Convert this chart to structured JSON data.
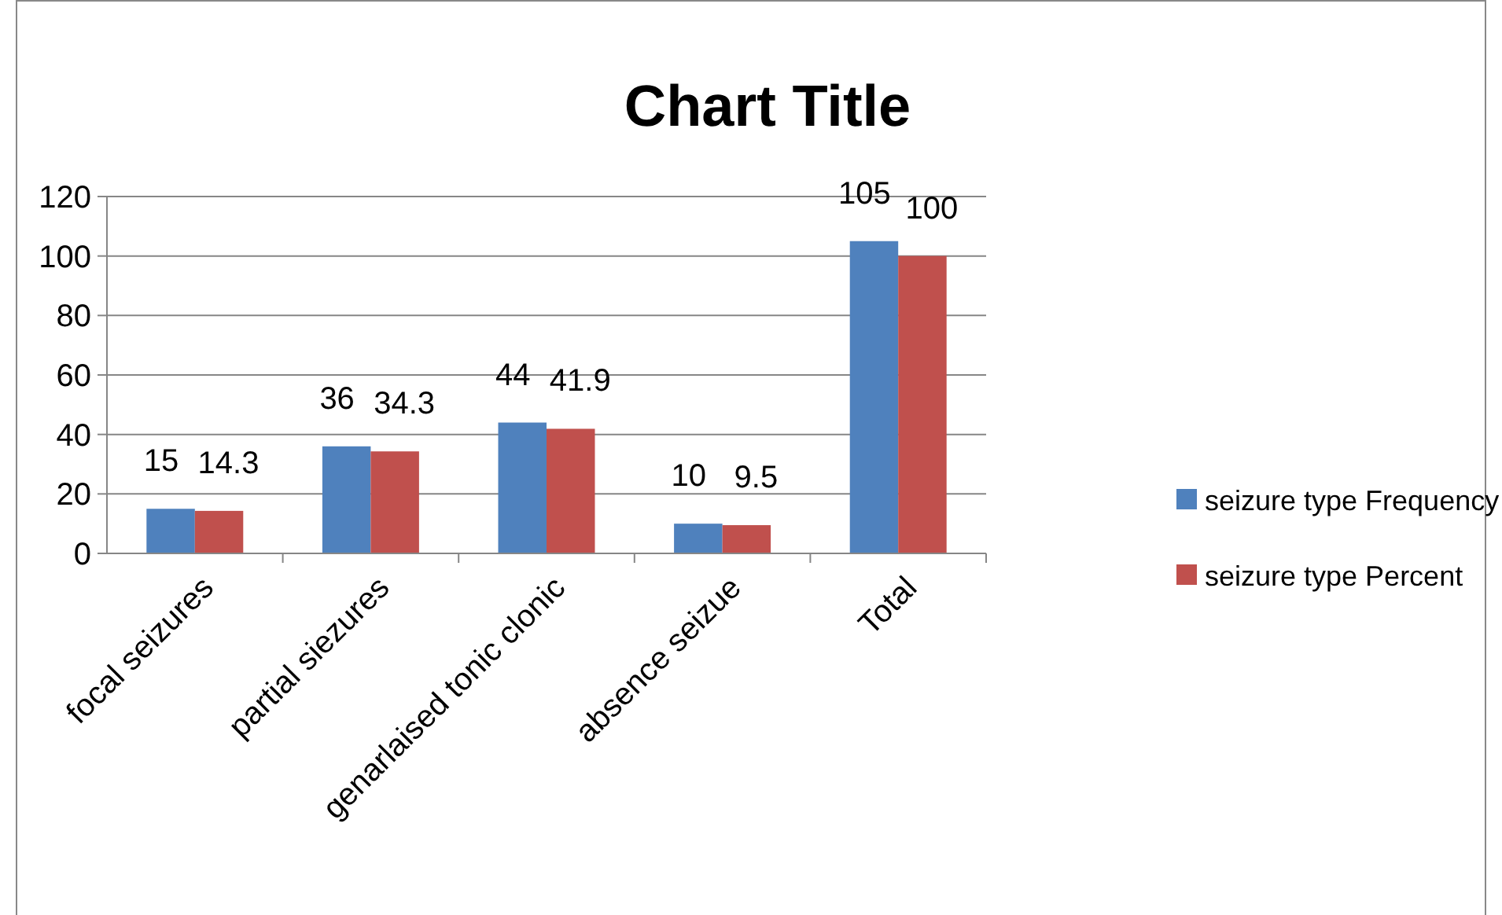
{
  "chart_data": {
    "type": "bar",
    "title": "Chart Title",
    "categories": [
      "focal seizures",
      "partial siezures",
      "genarlaised tonic clonic",
      "absence seizue",
      "Total"
    ],
    "series": [
      {
        "name": "seizure type Frequency",
        "color": "#4f81bd",
        "values": [
          15,
          36,
          44,
          10,
          105
        ]
      },
      {
        "name": "seizure type Percent",
        "color": "#c0504d",
        "values": [
          14.3,
          34.3,
          41.9,
          9.5,
          100
        ]
      }
    ],
    "ylim": [
      0,
      120
    ],
    "yticks": [
      0,
      20,
      40,
      60,
      80,
      100,
      120
    ],
    "grid": "y",
    "legend": "right",
    "data_labels": true
  }
}
